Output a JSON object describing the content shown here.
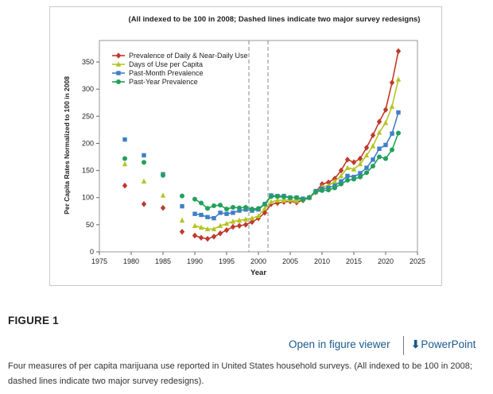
{
  "figure": {
    "label": "FIGURE 1",
    "open_viewer_label": "Open in figure viewer",
    "powerpoint_label": "PowerPoint",
    "caption": "Four measures of per capita marijuana use reported in United States household surveys. (All indexed to be 100 in 2008; dashed lines indicate two major survey redesigns)."
  },
  "chart_data": {
    "type": "line",
    "title": "(All indexed to be 100 in 2008; Dashed lines indicate two major survey redesigns)",
    "xlabel": "Year",
    "ylabel": "Per Capita Rates Normalized to 100 in 2008",
    "xlim": [
      1975,
      2025
    ],
    "ylim": [
      0,
      375
    ],
    "xticks": [
      1975,
      1980,
      1985,
      1990,
      1995,
      2000,
      2005,
      2010,
      2015,
      2020,
      2025
    ],
    "yticks": [
      0,
      50,
      100,
      150,
      200,
      250,
      300,
      350
    ],
    "vlines": [
      1998.5,
      2001.5
    ],
    "legend_position": "top-left",
    "series": [
      {
        "name": "Prevalence of Daily & Near-Daily Use",
        "color": "#c0392b",
        "marker": "diamond",
        "x": [
          1979,
          1982,
          1985,
          1988,
          1990,
          1991,
          1992,
          1993,
          1994,
          1995,
          1996,
          1997,
          1998,
          1999,
          2000,
          2001,
          2002,
          2003,
          2004,
          2005,
          2006,
          2007,
          2008,
          2009,
          2010,
          2011,
          2012,
          2013,
          2014,
          2015,
          2016,
          2017,
          2018,
          2019,
          2020,
          2021,
          2022
        ],
        "y": [
          122,
          88,
          81,
          37,
          30,
          26,
          24,
          28,
          34,
          40,
          46,
          48,
          50,
          55,
          62,
          72,
          88,
          90,
          92,
          93,
          91,
          95,
          100,
          110,
          125,
          128,
          135,
          150,
          170,
          165,
          172,
          192,
          215,
          240,
          262,
          312,
          370
        ]
      },
      {
        "name": "Days of Use per Capita",
        "color": "#b5c425",
        "marker": "triangle",
        "x": [
          1979,
          1982,
          1985,
          1988,
          1990,
          1991,
          1992,
          1993,
          1994,
          1995,
          1996,
          1997,
          1998,
          1999,
          2000,
          2001,
          2002,
          2003,
          2004,
          2005,
          2006,
          2007,
          2008,
          2009,
          2010,
          2011,
          2012,
          2013,
          2014,
          2015,
          2016,
          2017,
          2018,
          2019,
          2020,
          2021,
          2022
        ],
        "y": [
          162,
          130,
          104,
          58,
          48,
          45,
          42,
          42,
          48,
          52,
          56,
          58,
          60,
          62,
          66,
          80,
          92,
          95,
          95,
          96,
          94,
          97,
          100,
          110,
          120,
          122,
          130,
          140,
          155,
          152,
          162,
          178,
          195,
          220,
          238,
          268,
          318
        ]
      },
      {
        "name": "Past-Month Prevalence",
        "color": "#3f7fc6",
        "marker": "square",
        "x": [
          1979,
          1982,
          1985,
          1988,
          1990,
          1991,
          1992,
          1993,
          1994,
          1995,
          1996,
          1997,
          1998,
          1999,
          2000,
          2001,
          2002,
          2003,
          2004,
          2005,
          2006,
          2007,
          2008,
          2009,
          2010,
          2011,
          2012,
          2013,
          2014,
          2015,
          2016,
          2017,
          2018,
          2019,
          2020,
          2021,
          2022
        ],
        "y": [
          207,
          178,
          143,
          84,
          70,
          68,
          64,
          62,
          72,
          70,
          72,
          76,
          78,
          76,
          78,
          88,
          104,
          103,
          103,
          100,
          100,
          98,
          100,
          112,
          116,
          118,
          122,
          130,
          140,
          138,
          145,
          155,
          170,
          190,
          197,
          218,
          257
        ]
      },
      {
        "name": "Past-Year Prevalence",
        "color": "#23a05a",
        "marker": "circle",
        "x": [
          1979,
          1982,
          1985,
          1988,
          1990,
          1991,
          1992,
          1993,
          1994,
          1995,
          1996,
          1997,
          1998,
          1999,
          2000,
          2001,
          2002,
          2003,
          2004,
          2005,
          2006,
          2007,
          2008,
          2009,
          2010,
          2011,
          2012,
          2013,
          2014,
          2015,
          2016,
          2017,
          2018,
          2019,
          2020,
          2021,
          2022
        ],
        "y": [
          172,
          165,
          141,
          103,
          97,
          90,
          80,
          85,
          86,
          79,
          82,
          81,
          82,
          79,
          80,
          88,
          102,
          102,
          101,
          100,
          100,
          96,
          100,
          110,
          113,
          114,
          118,
          125,
          132,
          134,
          138,
          146,
          158,
          175,
          172,
          188,
          219
        ]
      }
    ]
  }
}
